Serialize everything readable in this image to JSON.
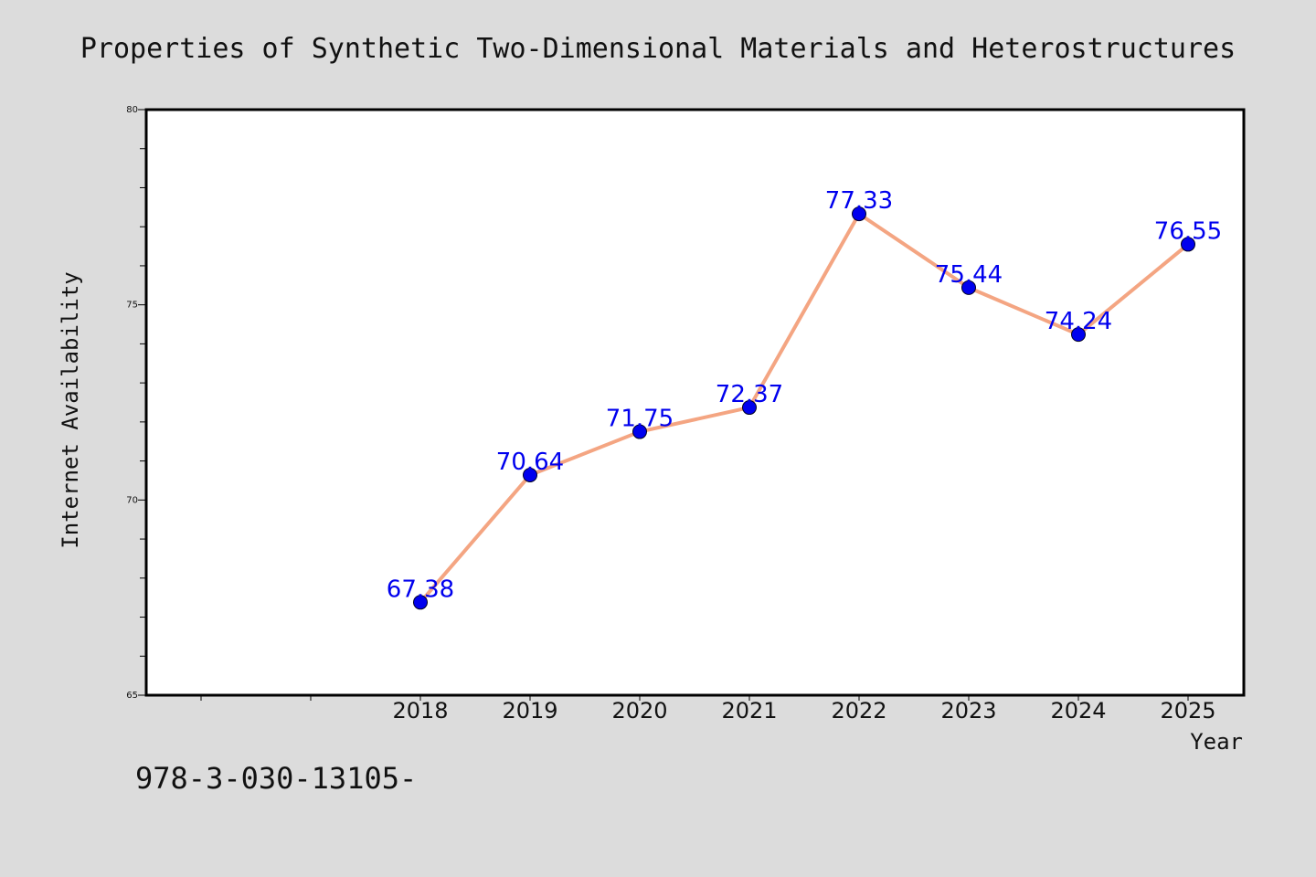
{
  "chart_data": {
    "type": "line",
    "title": "Properties of Synthetic Two-Dimensional Materials and Heterostructures",
    "xlabel": "Year",
    "ylabel": "Internet Availability",
    "x": [
      "2018",
      "2019",
      "2020",
      "2021",
      "2022",
      "2023",
      "2024",
      "2025"
    ],
    "series": [
      {
        "values": [
          67.38,
          70.64,
          71.75,
          72.37,
          77.33,
          75.44,
          74.24,
          76.55
        ],
        "labels": [
          "67.38",
          "70.64",
          "71.75",
          "72.37",
          "77.33",
          "75.44",
          "74.24",
          "76.55"
        ]
      }
    ],
    "ylim": [
      65,
      80
    ],
    "yticks": [
      "65",
      "70",
      "75",
      "80"
    ],
    "grid": false,
    "legend": "none",
    "line_color": "#f4a582",
    "marker_color": "#0000ee",
    "label_color": "#0000ee"
  },
  "footer": {
    "code": "978-3-030-13105-"
  }
}
